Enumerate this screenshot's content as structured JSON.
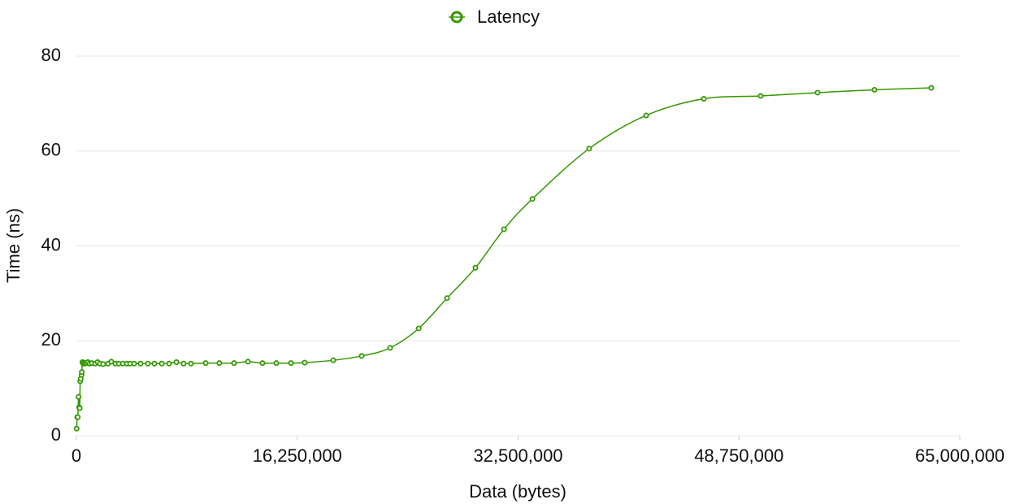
{
  "chart_data": {
    "type": "line",
    "xlabel": "Data (bytes)",
    "ylabel": "Time (ns)",
    "x": [
      16000,
      60000,
      100000,
      160000,
      200000,
      240000,
      280000,
      320000,
      380000,
      400000,
      440000,
      500000,
      560000,
      620000,
      720000,
      840000,
      960000,
      1130000,
      1380000,
      1560000,
      1730000,
      1970000,
      2330000,
      2570000,
      2870000,
      3110000,
      3410000,
      3710000,
      3950000,
      4250000,
      4720000,
      5260000,
      5740000,
      6280000,
      6820000,
      7360000,
      7890000,
      8430000,
      9510000,
      10520000,
      11600000,
      12620000,
      13690000,
      14710000,
      15790000,
      16800000,
      18900000,
      20990000,
      23080000,
      25180000,
      27270000,
      29360000,
      31460000,
      33550000,
      37730000,
      41920000,
      46160000,
      50350000,
      54530000,
      58720000,
      62900000
    ],
    "series": [
      {
        "name": "Latency",
        "color": "#339900",
        "values": [
          1.5,
          3.9,
          3.9,
          8.2,
          6.0,
          5.8,
          11.5,
          12.0,
          12.8,
          13.4,
          15.5,
          15.2,
          15.4,
          15.2,
          15.3,
          15.5,
          15.2,
          15.3,
          15.2,
          15.5,
          15.2,
          15.1,
          15.2,
          15.6,
          15.2,
          15.2,
          15.2,
          15.2,
          15.2,
          15.2,
          15.2,
          15.2,
          15.2,
          15.2,
          15.2,
          15.5,
          15.2,
          15.2,
          15.3,
          15.3,
          15.3,
          15.6,
          15.3,
          15.3,
          15.3,
          15.4,
          15.9,
          16.8,
          18.5,
          22.6,
          29.0,
          35.4,
          43.5,
          49.9,
          60.5,
          67.5,
          71.0,
          71.6,
          72.3,
          72.9,
          73.3
        ]
      }
    ],
    "xlim": [
      0,
      65000000
    ],
    "xticks": [
      0,
      {
        "value": 16250000,
        "label": "16,250,000"
      },
      {
        "value": 32500000,
        "label": "32,500,000"
      },
      {
        "value": 48750000,
        "label": "48,750,000"
      },
      {
        "value": 65000000,
        "label": "65,000,000"
      }
    ],
    "ylim": [
      0,
      80
    ],
    "yticks": [
      0,
      20,
      40,
      60,
      80
    ],
    "grid": true,
    "legend": "top"
  }
}
